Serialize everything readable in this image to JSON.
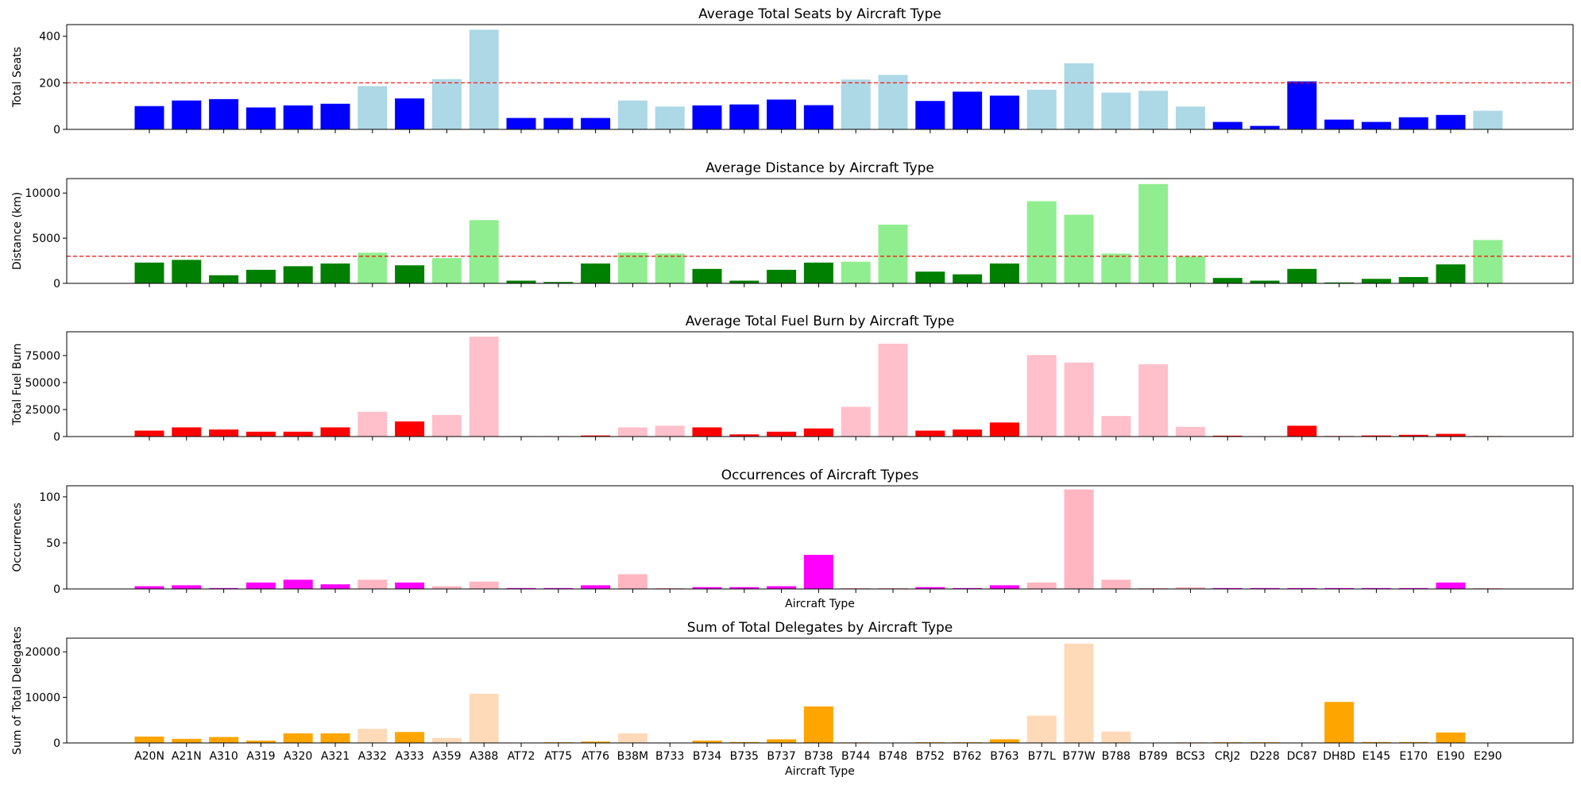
{
  "chart_data": {
    "type": "bar",
    "xlabel": "Aircraft Type",
    "categories": [
      "A20N",
      "A21N",
      "A310",
      "A319",
      "A320",
      "A321",
      "A332",
      "A333",
      "A359",
      "A388",
      "AT72",
      "AT75",
      "AT76",
      "B38M",
      "B733",
      "B734",
      "B735",
      "B737",
      "B738",
      "B744",
      "B748",
      "B752",
      "B762",
      "B763",
      "B77L",
      "B77W",
      "B788",
      "B789",
      "BCS3",
      "CRJ2",
      "D228",
      "DC87",
      "DH8D",
      "E145",
      "E170",
      "E190",
      "E290"
    ],
    "panels": [
      {
        "title": "Average Total Seats by Aircraft Type",
        "ylabel": "Total Seats",
        "xlabel": "",
        "ylim": [
          0,
          450
        ],
        "yticks": [
          0,
          200,
          400
        ],
        "threshold": 200,
        "color_high": "#add8e6",
        "color_low": "#0000ff",
        "values": [
          100,
          124,
          130,
          94,
          103,
          110,
          186,
          133,
          216,
          428,
          49,
          49,
          49,
          124,
          98,
          103,
          107,
          128,
          104,
          214,
          234,
          122,
          162,
          145,
          170,
          284,
          158,
          166,
          98,
          32,
          15,
          206,
          42,
          32,
          52,
          62,
          80
        ],
        "highlight": [
          0,
          0,
          0,
          0,
          0,
          0,
          1,
          0,
          1,
          1,
          0,
          0,
          0,
          1,
          1,
          0,
          0,
          0,
          0,
          1,
          1,
          0,
          0,
          0,
          1,
          1,
          1,
          1,
          1,
          0,
          0,
          0,
          0,
          0,
          0,
          0,
          1
        ]
      },
      {
        "title": "Average Distance by Aircraft Type",
        "ylabel": "Distance (km)",
        "xlabel": "",
        "ylim": [
          0,
          11600
        ],
        "yticks": [
          0,
          5000,
          10000
        ],
        "threshold": 3000,
        "color_high": "#90ee90",
        "color_low": "#008000",
        "values": [
          2300,
          2600,
          900,
          1500,
          1900,
          2200,
          3400,
          2000,
          2800,
          7000,
          300,
          150,
          2200,
          3400,
          3300,
          1600,
          300,
          1500,
          2300,
          2400,
          6500,
          1300,
          1000,
          2200,
          9100,
          7600,
          3300,
          11000,
          3000,
          600,
          300,
          1600,
          100,
          500,
          700,
          2100,
          4800
        ],
        "highlight": [
          0,
          0,
          0,
          0,
          0,
          0,
          1,
          0,
          1,
          1,
          0,
          0,
          0,
          1,
          1,
          0,
          0,
          0,
          0,
          1,
          1,
          0,
          0,
          0,
          1,
          1,
          1,
          1,
          1,
          0,
          0,
          0,
          0,
          0,
          0,
          0,
          1
        ]
      },
      {
        "title": "Average Total Fuel Burn by Aircraft Type",
        "ylabel": "Total Fuel Burn",
        "xlabel": "",
        "ylim": [
          0,
          97000
        ],
        "yticks": [
          0,
          25000,
          50000,
          75000
        ],
        "color_high": "#ffc0cb",
        "color_low": "#ff0000",
        "values": [
          5500,
          8500,
          6500,
          4500,
          4500,
          8500,
          23000,
          14000,
          20000,
          92500,
          400,
          400,
          1000,
          8500,
          10000,
          8500,
          2000,
          4500,
          7500,
          27500,
          86000,
          5500,
          6500,
          13000,
          75500,
          68500,
          19000,
          67000,
          9000,
          800,
          400,
          10000,
          500,
          1000,
          1600,
          2500,
          700
        ],
        "highlight": [
          0,
          0,
          0,
          0,
          0,
          0,
          1,
          0,
          1,
          1,
          0,
          0,
          0,
          1,
          1,
          0,
          0,
          0,
          0,
          1,
          1,
          0,
          0,
          0,
          1,
          1,
          1,
          1,
          1,
          0,
          0,
          0,
          0,
          0,
          0,
          0,
          1
        ]
      },
      {
        "title": "Occurrences of Aircraft Types",
        "ylabel": "Occurrences",
        "xlabel": "Aircraft Type",
        "ylim": [
          0,
          112
        ],
        "yticks": [
          0,
          50,
          100
        ],
        "color_high": "#ffb6c1",
        "color_low": "#ff00ff",
        "values": [
          3,
          4,
          1,
          7,
          10,
          5,
          10,
          7,
          3,
          8,
          1,
          1,
          4,
          16,
          1,
          2,
          2,
          3,
          37,
          1,
          1,
          2,
          1,
          4,
          7,
          108,
          10,
          1,
          2,
          1,
          1,
          1,
          1,
          1,
          1,
          7,
          1
        ],
        "highlight": [
          0,
          0,
          0,
          0,
          0,
          0,
          1,
          0,
          1,
          1,
          0,
          0,
          0,
          1,
          1,
          0,
          0,
          0,
          0,
          1,
          1,
          0,
          0,
          0,
          1,
          1,
          1,
          1,
          1,
          0,
          0,
          0,
          0,
          0,
          0,
          0,
          1
        ]
      },
      {
        "title": "Sum of Total Delegates by Aircraft Type",
        "ylabel": "Sum of Total Delegates",
        "xlabel": "Aircraft Type",
        "ylim": [
          0,
          23000
        ],
        "yticks": [
          0,
          10000,
          20000
        ],
        "color_high": "#ffdab9",
        "color_low": "#ffa500",
        "values": [
          1400,
          900,
          1300,
          500,
          2100,
          2100,
          3100,
          2400,
          1100,
          10800,
          50,
          150,
          300,
          2100,
          50,
          500,
          200,
          800,
          8000,
          200,
          50,
          150,
          150,
          800,
          6000,
          21800,
          2500,
          50,
          200,
          150,
          150,
          50,
          9000,
          200,
          200,
          2300,
          50
        ],
        "highlight": [
          0,
          0,
          0,
          0,
          0,
          0,
          1,
          0,
          1,
          1,
          0,
          0,
          0,
          1,
          1,
          0,
          0,
          0,
          0,
          1,
          1,
          0,
          0,
          0,
          1,
          1,
          1,
          1,
          1,
          0,
          0,
          0,
          0,
          0,
          0,
          0,
          1
        ]
      }
    ]
  }
}
